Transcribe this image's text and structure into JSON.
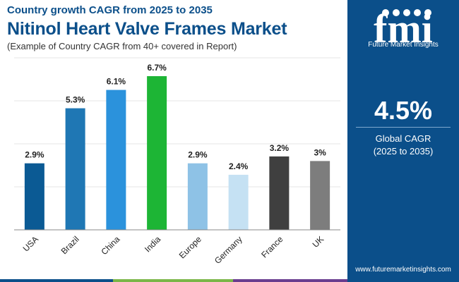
{
  "header": {
    "supertitle": "Country growth CAGR from 2025 to 2035",
    "title": "Nitinol Heart Valve Frames Market",
    "note": "(Example of Country CAGR from 40+ covered in Report)"
  },
  "sidebar": {
    "logo_letters": "fmi",
    "logo_text": "Future Market Insights",
    "cagr_value": "4.5%",
    "cagr_label": "Global CAGR",
    "cagr_period": "(2025 to 2035)",
    "website": "www.futuremarketinsights.com"
  },
  "colors": {
    "brand": "#0b4f8a",
    "strip": [
      "#0b4f8a",
      "#7ab648",
      "#6a3d8f",
      "#0b4f8a"
    ]
  },
  "chart_data": {
    "type": "bar",
    "categories": [
      "USA",
      "Brazil",
      "China",
      "India",
      "Europe",
      "Germany",
      "France",
      "UK"
    ],
    "values": [
      2.9,
      5.3,
      6.1,
      6.7,
      2.9,
      2.4,
      3.2,
      3.0
    ],
    "labels": [
      "2.9%",
      "5.3%",
      "6.1%",
      "6.7%",
      "2.9%",
      "2.4%",
      "3.2%",
      "3%"
    ],
    "colors": [
      "#0b5a94",
      "#1f77b4",
      "#2b92dc",
      "#1db535",
      "#8ec2e6",
      "#c5e1f3",
      "#3f3f3f",
      "#7d7d7d"
    ],
    "ylim": [
      0,
      7.5
    ],
    "grid": true
  }
}
